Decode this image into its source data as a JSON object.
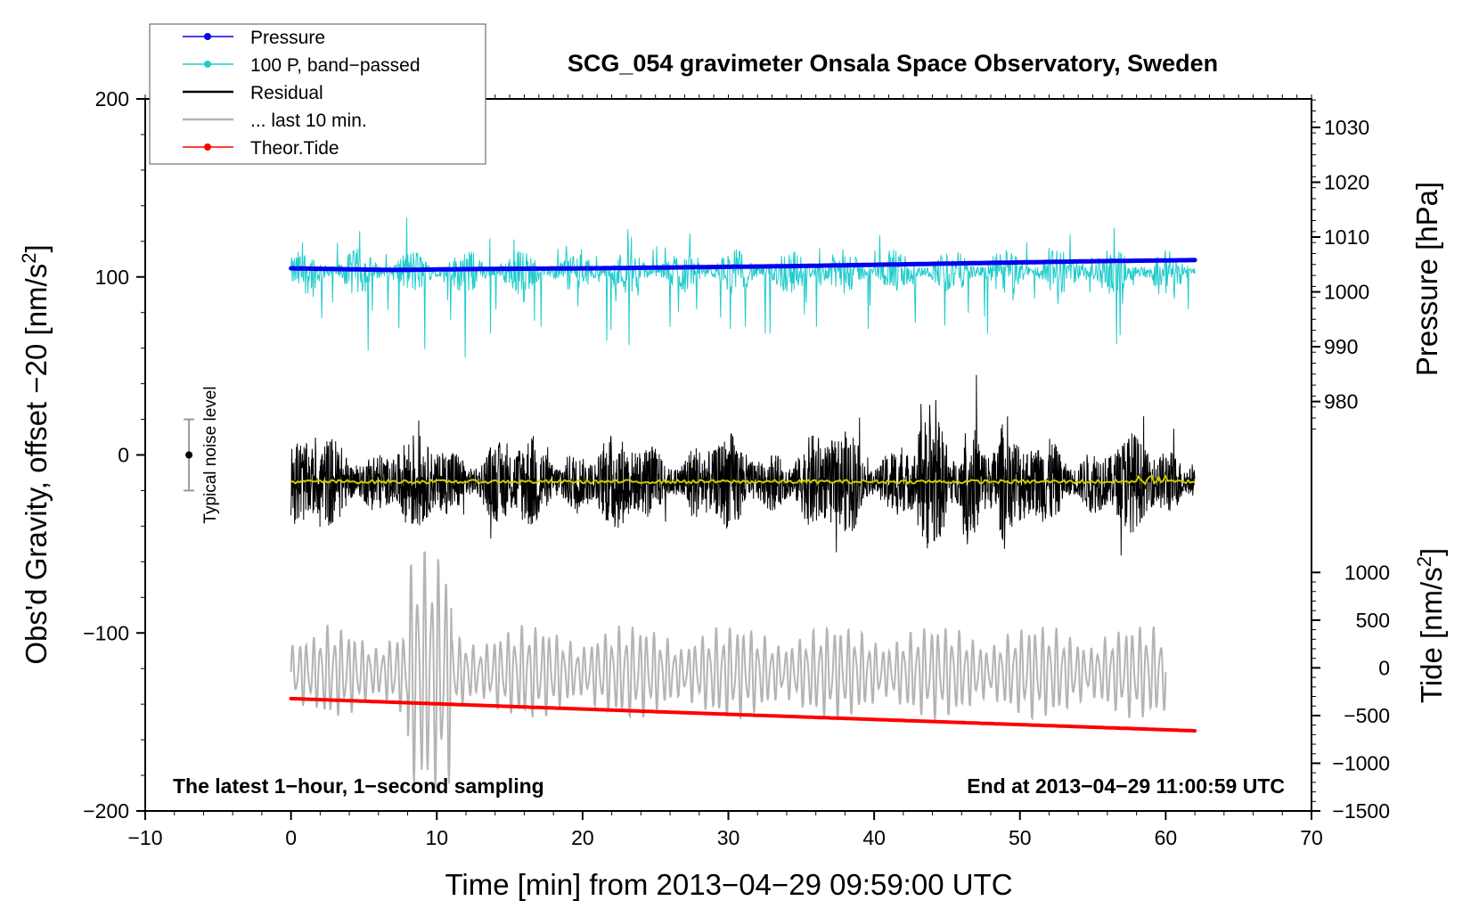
{
  "chart_data": {
    "type": "line",
    "title": "SCG_054 gravimeter Onsala Space Observatory, Sweden",
    "xlabel": "Time [min] from 2013−04−29 09:59:00 UTC",
    "ylabel_left": "Obs'd Gravity, offset −20 [nm/s²]",
    "ylabel_left_main": "Obs'd Gravity, offset −20 [nm/s",
    "ylabel_left_sup": "2",
    "ylabel_left_end": "]",
    "ylabel_right_pressure": "Pressure [hPa]",
    "ylabel_right_tide": "Tide [nm/s²]",
    "ylabel_right_tide_main": "Tide [nm/s",
    "ylabel_right_tide_sup": "2",
    "ylabel_right_tide_end": "]",
    "xlim": [
      -10,
      70
    ],
    "ylim_left": [
      -200,
      200
    ],
    "x_ticks": [
      -10,
      0,
      10,
      20,
      30,
      40,
      50,
      60,
      70
    ],
    "x_tick_labels": [
      "−10",
      "0",
      "10",
      "20",
      "30",
      "40",
      "50",
      "60",
      "70"
    ],
    "y_left_ticks": [
      -200,
      -100,
      0,
      100,
      200
    ],
    "y_left_tick_labels": [
      "−200",
      "−100",
      "0",
      "100",
      "200"
    ],
    "pressure_ticks": [
      980,
      990,
      1000,
      1010,
      1020,
      1030
    ],
    "pressure_tick_labels": [
      "980",
      "990",
      "1000",
      "1010",
      "1020",
      "1030"
    ],
    "pressure_axis_map": {
      "hpa": [
        980,
        1030
      ],
      "left_units": [
        30,
        184
      ]
    },
    "tide_ticks": [
      -1500,
      -1000,
      -500,
      0,
      500,
      1000
    ],
    "tide_tick_labels": [
      "−1500",
      "−1000",
      "−500",
      "0",
      "500",
      "1000"
    ],
    "tide_axis_map": {
      "nms2": [
        -1500,
        1000
      ],
      "left_units": [
        -200,
        -66
      ]
    },
    "series": [
      {
        "name": "Pressure",
        "color": "#0000ee",
        "style": "dots",
        "x_range": [
          0,
          62
        ],
        "values_hpa": [
          1004.3,
          1004.0,
          1004.2,
          1004.3,
          1004.5,
          1004.7,
          1005.0,
          1005.3,
          1005.6,
          1005.8
        ]
      },
      {
        "name": "100 P, band−passed",
        "color": "#22cccc",
        "style": "noise",
        "x_range": [
          0,
          62
        ],
        "center": 103,
        "amplitude": 13
      },
      {
        "name": "Residual",
        "color": "#000000",
        "style": "noise",
        "x_range": [
          0,
          62
        ],
        "center": -15,
        "amplitude": 25
      },
      {
        "name": "... last 10 min.",
        "color": "#b4b4b4",
        "style": "oscillation",
        "x_range": [
          0,
          60
        ],
        "center": -122,
        "amplitude": 20
      },
      {
        "name": "Theor.Tide",
        "color": "#ff0000",
        "style": "dots",
        "x_range": [
          0,
          62
        ],
        "values_nms2": [
          -322,
          -492,
          -660
        ]
      }
    ],
    "trend_overlay": {
      "color": "#cccc00",
      "center": -15
    },
    "noise_indicator": {
      "label": "Typical noise level",
      "x": -7,
      "y_center": 0,
      "y_range": [
        -20,
        20
      ]
    },
    "annotations": {
      "left": "The latest 1−hour, 1−second sampling",
      "right": "End at 2013−04−29 11:00:59 UTC"
    },
    "legend": [
      {
        "label": "Pressure",
        "color": "#0000ee",
        "marker": true
      },
      {
        "label": "100 P, band−passed",
        "color": "#22cccc",
        "marker": true
      },
      {
        "label": "Residual",
        "color": "#000000",
        "marker": false
      },
      {
        "label": "... last 10 min.",
        "color": "#b4b4b4",
        "marker": false
      },
      {
        "label": "Theor.Tide",
        "color": "#ff0000",
        "marker": true
      }
    ],
    "legend_position": "top-left"
  }
}
